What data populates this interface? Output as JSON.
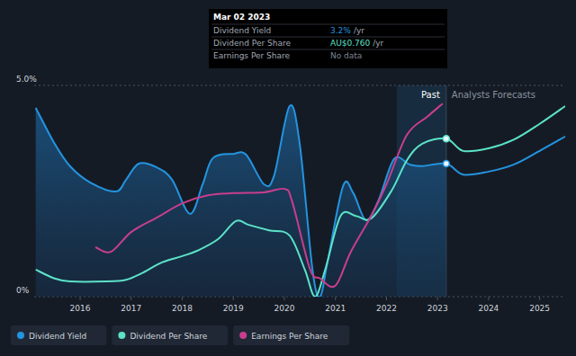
{
  "chart_data": {
    "type": "line",
    "xlim": [
      2015.1,
      2025.5
    ],
    "xticks": [
      2016,
      2017,
      2018,
      2019,
      2020,
      2021,
      2022,
      2023,
      2024,
      2025
    ],
    "ylim": [
      0,
      5
    ],
    "yticks": [
      {
        "value": 0,
        "label": "0%"
      },
      {
        "value": 5,
        "label": "5.0%"
      }
    ],
    "grid": true,
    "legend": "bottom",
    "series": [
      {
        "name": "Dividend Yield",
        "color": "#2394df",
        "x": [
          2015.13,
          2015.5,
          2015.8,
          2016.2,
          2016.7,
          2016.9,
          2017.15,
          2017.5,
          2017.8,
          2018.15,
          2018.4,
          2018.6,
          2019.0,
          2019.25,
          2019.6,
          2019.8,
          2020.1,
          2020.3,
          2020.55,
          2020.7,
          2020.85,
          2021.15,
          2021.35,
          2021.6,
          2021.85,
          2022.15,
          2022.45,
          2022.7,
          2023.17,
          2023.5,
          2024.0,
          2024.5,
          2025.0,
          2025.5
        ],
        "values": [
          4.47,
          3.62,
          3.09,
          2.7,
          2.49,
          2.77,
          3.15,
          3.06,
          2.77,
          1.96,
          2.66,
          3.28,
          3.38,
          3.36,
          2.66,
          2.87,
          4.51,
          3.62,
          0.64,
          0,
          0.85,
          2.62,
          2.45,
          1.81,
          2.3,
          3.26,
          3.13,
          3.09,
          3.15,
          2.89,
          2.96,
          3.13,
          3.45,
          3.79
        ]
      },
      {
        "name": "Dividend Per Share",
        "color": "#5ce2c8",
        "x": [
          2015.13,
          2015.5,
          2015.8,
          2016.5,
          2016.9,
          2017.2,
          2017.6,
          2018.0,
          2018.3,
          2018.7,
          2019.05,
          2019.3,
          2019.7,
          2020.1,
          2020.4,
          2020.6,
          2020.8,
          2021.1,
          2021.4,
          2021.7,
          2022.1,
          2022.4,
          2022.7,
          2023.17,
          2023.5,
          2024.0,
          2024.5,
          2025.0,
          2025.5
        ],
        "values": [
          0.64,
          0.43,
          0.36,
          0.36,
          0.4,
          0.55,
          0.81,
          0.96,
          1.09,
          1.36,
          1.79,
          1.7,
          1.57,
          1.45,
          0.64,
          0,
          0.64,
          1.91,
          1.91,
          1.85,
          2.51,
          3.23,
          3.62,
          3.74,
          3.45,
          3.51,
          3.72,
          4.09,
          4.51
        ]
      },
      {
        "name": "Earnings Per Share",
        "color": "#c83e8d",
        "x": [
          2016.3,
          2016.6,
          2017.0,
          2017.5,
          2018.0,
          2018.5,
          2019.0,
          2019.6,
          2020.0,
          2020.15,
          2020.5,
          2020.7,
          2021.0,
          2021.3,
          2021.7,
          2022.0,
          2022.4,
          2022.8,
          2023.1
        ],
        "values": [
          1.17,
          1.06,
          1.53,
          1.87,
          2.21,
          2.4,
          2.45,
          2.47,
          2.55,
          2.26,
          0.66,
          0.43,
          0.26,
          1.06,
          1.91,
          2.66,
          3.83,
          4.26,
          4.57
        ]
      }
    ],
    "annotations": [
      {
        "label": "Past",
        "x": [
          2022.2,
          2023.17
        ]
      },
      {
        "label": "Analysts Forecasts",
        "x": [
          2023.17,
          2025.5
        ]
      }
    ],
    "tooltip": {
      "title": "Mar 02 2023",
      "rows": [
        {
          "label": "Dividend Yield",
          "value": "3.2%",
          "unit": "/yr",
          "color": "#2394df"
        },
        {
          "label": "Dividend Per Share",
          "value": "AU$0.760",
          "unit": "/yr",
          "color": "#5ce2c8"
        },
        {
          "label": "Earnings Per Share",
          "value": "No data",
          "color": "#7c8593"
        }
      ]
    }
  }
}
